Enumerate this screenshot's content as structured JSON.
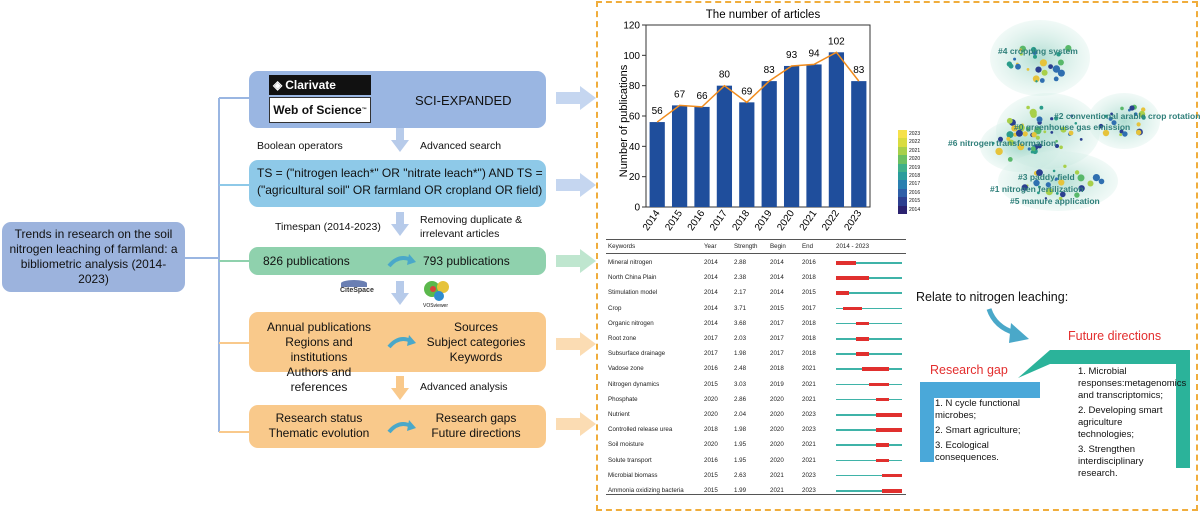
{
  "title_box": "Trends in research on the soil nitrogen leaching of farmland: a bibliometric analysis (2014-2023)",
  "wos": {
    "clarivate": "Clarivate",
    "wos_logo": "Web of Science",
    "tm": "™",
    "db": "SCI-EXPANDED"
  },
  "labels": {
    "boolean": "Boolean operators",
    "advanced_search": "Advanced search",
    "timespan": "Timespan (2014-2023)",
    "removing": "Removing duplicate &",
    "irrelevant": "irrelevant articles",
    "advanced_analysis": "Advanced analysis",
    "citespace": "CiteSpace",
    "vosviewer": "VOSviewer"
  },
  "query": {
    "line1": "TS = (\"nitrogen leach*\" OR \"nitrate leach*\") AND TS =",
    "line2": "(\"agricultural soil\" OR farmland OR cropland OR field)"
  },
  "pubs": {
    "before": "826 publications",
    "after": "793 publications"
  },
  "analysis_left": [
    "Annual publications",
    "Regions and institutions",
    "Authors and references"
  ],
  "analysis_right": [
    "Sources",
    "Subject categories",
    "Keywords"
  ],
  "result_left": [
    "Research status",
    "Thematic evolution"
  ],
  "result_right": [
    "Research gaps",
    "Future directions"
  ],
  "chart_data": {
    "type": "bar",
    "title": "The number of articles",
    "ylabel": "Number of publications",
    "categories": [
      "2014",
      "2015",
      "2016",
      "2017",
      "2018",
      "2019",
      "2020",
      "2021",
      "2022",
      "2023"
    ],
    "values": [
      56,
      67,
      66,
      80,
      69,
      83,
      93,
      94,
      102,
      83
    ],
    "ylim": [
      0,
      120
    ],
    "yticks": [
      0,
      20,
      40,
      60,
      80,
      100,
      120
    ],
    "bar_color": "#1f4e9c",
    "line_color": "#f08c1e"
  },
  "bursts": {
    "headers": {
      "keywords": "Keywords",
      "year": "Year",
      "strength": "Strength",
      "begin": "Begin",
      "end": "End",
      "range": "2014 - 2023"
    },
    "rows": [
      {
        "keyword": "Mineral nitrogen",
        "year": "2014",
        "strength": "2.88",
        "begin": "2014",
        "end": "2016",
        "b": 2014,
        "e": 2016
      },
      {
        "keyword": "North China Plain",
        "year": "2014",
        "strength": "2.38",
        "begin": "2014",
        "end": "2018",
        "b": 2014,
        "e": 2018
      },
      {
        "keyword": "Stimulation model",
        "year": "2014",
        "strength": "2.17",
        "begin": "2014",
        "end": "2015",
        "b": 2014,
        "e": 2015
      },
      {
        "keyword": "Crop",
        "year": "2014",
        "strength": "3.71",
        "begin": "2015",
        "end": "2017",
        "b": 2015,
        "e": 2017
      },
      {
        "keyword": "Organic nitrogen",
        "year": "2014",
        "strength": "3.68",
        "begin": "2017",
        "end": "2018",
        "b": 2017,
        "e": 2018
      },
      {
        "keyword": "Root zone",
        "year": "2017",
        "strength": "2.03",
        "begin": "2017",
        "end": "2018",
        "b": 2017,
        "e": 2018
      },
      {
        "keyword": "Subsurface drainage",
        "year": "2017",
        "strength": "1.98",
        "begin": "2017",
        "end": "2018",
        "b": 2017,
        "e": 2018
      },
      {
        "keyword": "Vadose zone",
        "year": "2016",
        "strength": "2.48",
        "begin": "2018",
        "end": "2021",
        "b": 2018,
        "e": 2021
      },
      {
        "keyword": "Nitrogen dynamics",
        "year": "2015",
        "strength": "3.03",
        "begin": "2019",
        "end": "2021",
        "b": 2019,
        "e": 2021
      },
      {
        "keyword": "Phosphate",
        "year": "2020",
        "strength": "2.86",
        "begin": "2020",
        "end": "2021",
        "b": 2020,
        "e": 2021
      },
      {
        "keyword": "Nutrient",
        "year": "2020",
        "strength": "2.04",
        "begin": "2020",
        "end": "2023",
        "b": 2020,
        "e": 2023
      },
      {
        "keyword": "Controlled release urea",
        "year": "2018",
        "strength": "1.98",
        "begin": "2020",
        "end": "2023",
        "b": 2020,
        "e": 2023
      },
      {
        "keyword": "Soil moisture",
        "year": "2020",
        "strength": "1.95",
        "begin": "2020",
        "end": "2021",
        "b": 2020,
        "e": 2021
      },
      {
        "keyword": "Solute transport",
        "year": "2016",
        "strength": "1.95",
        "begin": "2020",
        "end": "2021",
        "b": 2020,
        "e": 2021
      },
      {
        "keyword": "Microbial biomass",
        "year": "2015",
        "strength": "2.63",
        "begin": "2021",
        "end": "2023",
        "b": 2021,
        "e": 2023
      },
      {
        "keyword": "Ammonia oxidizing bacteria",
        "year": "2015",
        "strength": "1.99",
        "begin": "2021",
        "end": "2023",
        "b": 2021,
        "e": 2023
      }
    ]
  },
  "clusters": [
    "#4 cropping system",
    "#2 conventional arable crop rotation",
    "#0 greenhouse gas emission",
    "#6 nitrogen transformation",
    "#3 paddy field",
    "#1 nitrogen fertilization",
    "#5 manure application"
  ],
  "color_scale": [
    "2023",
    "2022",
    "2021",
    "2020",
    "2019",
    "2018",
    "2017",
    "2016",
    "2015",
    "2014"
  ],
  "relate": "Relate to nitrogen leaching:",
  "gap": {
    "title": "Research gap",
    "items": [
      "1. N cycle functional microbes;",
      "2. Smart agriculture;",
      "3. Ecological consequences."
    ]
  },
  "future": {
    "title": "Future directions",
    "items": [
      "1. Microbial responses:metagenomics and transcriptomics;",
      "2. Developing smart agriculture technologies;",
      "3. Strengthen interdisciplinary research."
    ]
  },
  "colors": {
    "blue_box": "#9ab6e2",
    "light_blue_box": "#8ec9e8",
    "green_box": "#8fd1ad",
    "orange_box": "#f9c98b",
    "title_box": "#9cb3dd",
    "teal": "#2bb39a",
    "dash": "#f0ad3c"
  }
}
